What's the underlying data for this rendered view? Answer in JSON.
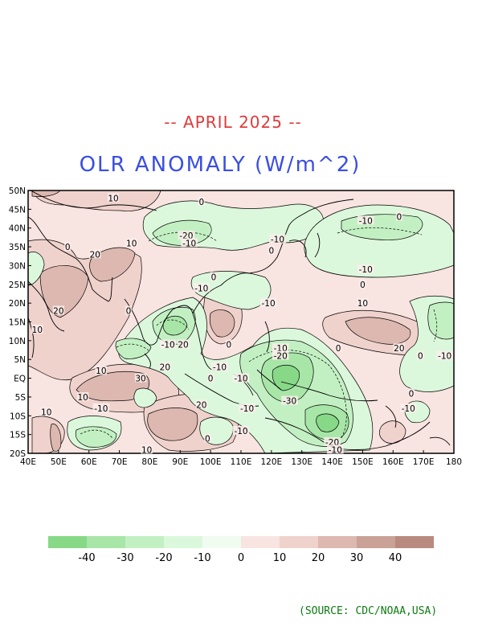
{
  "subtitle": "-- APRIL 2025 --",
  "title": "OLR ANOMALY (W/m^2)",
  "source": "(SOURCE: CDC/NOAA,USA)",
  "lat_labels": [
    "50N",
    "45N",
    "40N",
    "35N",
    "30N",
    "25N",
    "20N",
    "15N",
    "10N",
    "5N",
    "EQ",
    "5S",
    "10S",
    "15S",
    "20S"
  ],
  "lon_labels": [
    "40E",
    "50E",
    "60E",
    "70E",
    "80E",
    "90E",
    "100E",
    "110E",
    "120E",
    "130E",
    "140E",
    "150E",
    "160E",
    "170E",
    "180"
  ],
  "colorbar": {
    "colors": [
      "#87d987",
      "#a8e6a8",
      "#c3f0c3",
      "#dcf8dc",
      "#f0fcf0",
      "#f8e4e0",
      "#f0d2cc",
      "#dcb8b0",
      "#c9a196",
      "#b88a80"
    ],
    "labels": [
      "-40",
      "-30",
      "-20",
      "-10",
      "0",
      "10",
      "20",
      "30",
      "40"
    ]
  },
  "contour_labels": [
    {
      "text": "10",
      "lon": 68,
      "lat": 48
    },
    {
      "text": "0",
      "lon": 97,
      "lat": 47
    },
    {
      "text": "-20",
      "lon": 92,
      "lat": 38
    },
    {
      "text": "-10",
      "lon": 93,
      "lat": 36
    },
    {
      "text": "10",
      "lon": 74,
      "lat": 36
    },
    {
      "text": "0",
      "lon": 53,
      "lat": 35
    },
    {
      "text": "20",
      "lon": 62,
      "lat": 33
    },
    {
      "text": "-10",
      "lon": 122,
      "lat": 37
    },
    {
      "text": "0",
      "lon": 120,
      "lat": 34
    },
    {
      "text": "-10",
      "lon": 151,
      "lat": 42
    },
    {
      "text": "0",
      "lon": 162,
      "lat": 43
    },
    {
      "text": "-10",
      "lon": 151,
      "lat": 29
    },
    {
      "text": "0",
      "lon": 150,
      "lat": 25
    },
    {
      "text": "10",
      "lon": 150,
      "lat": 20
    },
    {
      "text": "0",
      "lon": 101,
      "lat": 27
    },
    {
      "text": "-10",
      "lon": 97,
      "lat": 24
    },
    {
      "text": "-10",
      "lon": 119,
      "lat": 20
    },
    {
      "text": "20",
      "lon": 50,
      "lat": 18
    },
    {
      "text": "0",
      "lon": 73,
      "lat": 18
    },
    {
      "text": "10",
      "lon": 43,
      "lat": 13
    },
    {
      "text": "-10",
      "lon": 86,
      "lat": 9
    },
    {
      "text": "20",
      "lon": 91,
      "lat": 9
    },
    {
      "text": "0",
      "lon": 106,
      "lat": 9
    },
    {
      "text": "-10",
      "lon": 123,
      "lat": 8
    },
    {
      "text": "-20",
      "lon": 123,
      "lat": 6
    },
    {
      "text": "0",
      "lon": 142,
      "lat": 8
    },
    {
      "text": "20",
      "lon": 162,
      "lat": 8
    },
    {
      "text": "-10",
      "lon": 177,
      "lat": 6
    },
    {
      "text": "0",
      "lon": 169,
      "lat": 6
    },
    {
      "text": "20",
      "lon": 85,
      "lat": 3
    },
    {
      "text": "10",
      "lon": 64,
      "lat": 2
    },
    {
      "text": "30",
      "lon": 77,
      "lat": 0
    },
    {
      "text": "-10",
      "lon": 103,
      "lat": 3
    },
    {
      "text": "-10",
      "lon": 110,
      "lat": 0
    },
    {
      "text": "-30",
      "lon": 126,
      "lat": -6
    },
    {
      "text": "0",
      "lon": 100,
      "lat": 0
    },
    {
      "text": "0",
      "lon": 166,
      "lat": -4
    },
    {
      "text": "-10",
      "lon": 165,
      "lat": -8
    },
    {
      "text": "20",
      "lon": 97,
      "lat": -7
    },
    {
      "text": "10",
      "lon": 58,
      "lat": -5
    },
    {
      "text": "-10",
      "lon": 64,
      "lat": -8
    },
    {
      "text": "10",
      "lon": 46,
      "lat": -9
    },
    {
      "text": "-10",
      "lon": 112,
      "lat": -8
    },
    {
      "text": "0",
      "lon": 99,
      "lat": -16
    },
    {
      "text": "10",
      "lon": 79,
      "lat": -19
    },
    {
      "text": "-20",
      "lon": 140,
      "lat": -17
    },
    {
      "text": "-10",
      "lon": 141,
      "lat": -19
    },
    {
      "text": "-10",
      "lon": 110,
      "lat": -14
    }
  ]
}
